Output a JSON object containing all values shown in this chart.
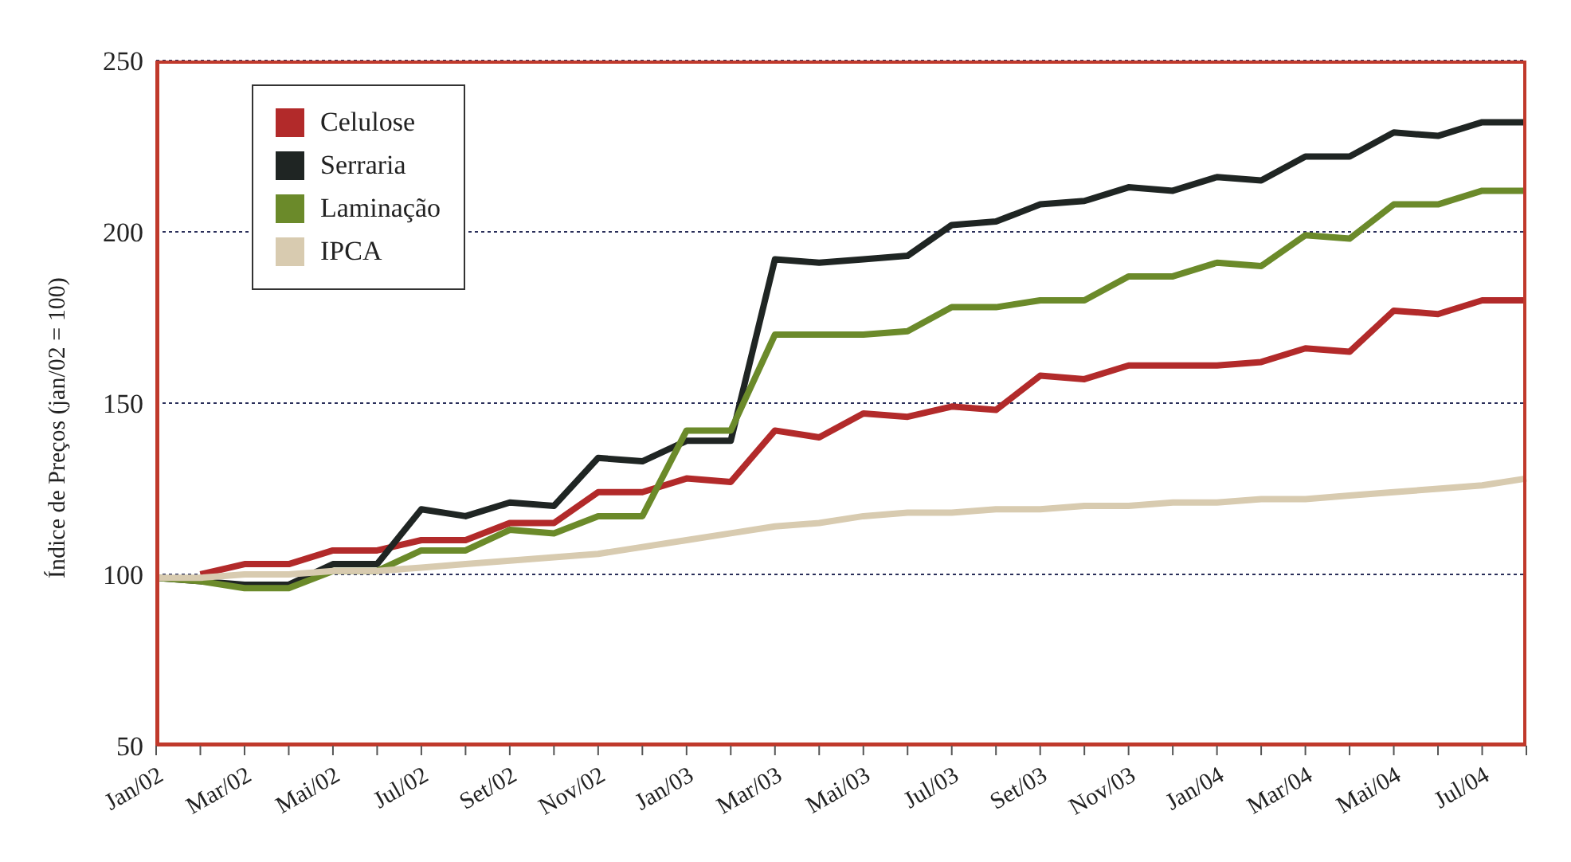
{
  "chart_data": {
    "type": "line",
    "ylabel": "Índice de Preços (jan/02 = 100)",
    "categories": [
      "Jan/02",
      null,
      "Mar/02",
      null,
      "Mai/02",
      null,
      "Jul/02",
      null,
      "Set/02",
      null,
      "Nov/02",
      null,
      "Jan/03",
      null,
      "Mar/03",
      null,
      "Mai/03",
      null,
      "Jul/03",
      null,
      "Set/03",
      null,
      "Nov/03",
      null,
      "Jan/04",
      null,
      "Mar/04",
      null,
      "Mai/04",
      null,
      "Jul/04",
      null
    ],
    "series": [
      {
        "name": "Celulose",
        "color": "#b22a2a",
        "values": [
          null,
          100,
          103,
          103,
          107,
          107,
          110,
          110,
          115,
          115,
          124,
          124,
          128,
          127,
          142,
          140,
          147,
          146,
          149,
          148,
          158,
          157,
          161,
          161,
          161,
          162,
          166,
          165,
          177,
          176,
          180,
          180
        ]
      },
      {
        "name": "Serraria",
        "color": "#1f2523",
        "values": [
          99,
          98,
          97,
          97,
          103,
          103,
          119,
          117,
          121,
          120,
          134,
          133,
          139,
          139,
          192,
          191,
          192,
          193,
          202,
          203,
          208,
          209,
          213,
          212,
          216,
          215,
          222,
          222,
          229,
          228,
          232,
          232
        ]
      },
      {
        "name": "Laminação",
        "color": "#6b8a2a",
        "values": [
          99,
          98,
          96,
          96,
          101,
          101,
          107,
          107,
          113,
          112,
          117,
          117,
          142,
          142,
          170,
          170,
          170,
          171,
          178,
          178,
          180,
          180,
          187,
          187,
          191,
          190,
          199,
          198,
          208,
          208,
          212,
          212
        ]
      },
      {
        "name": "IPCA",
        "color": "#d8cbb0",
        "values": [
          99,
          99,
          100,
          100,
          101,
          101,
          102,
          103,
          104,
          105,
          106,
          108,
          110,
          112,
          114,
          115,
          117,
          118,
          118,
          119,
          119,
          120,
          120,
          121,
          121,
          122,
          122,
          123,
          124,
          125,
          126,
          128
        ]
      }
    ],
    "ylim": [
      50,
      250
    ],
    "yticks": [
      50,
      100,
      150,
      200,
      250
    ],
    "grid": "y",
    "legend": "top left"
  }
}
